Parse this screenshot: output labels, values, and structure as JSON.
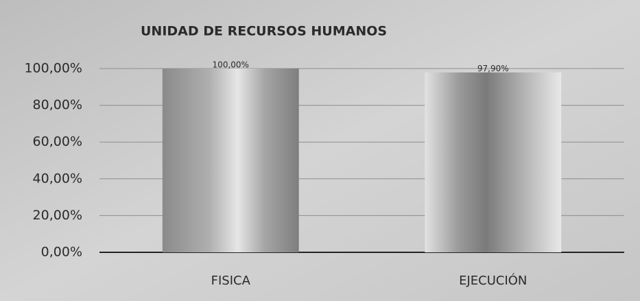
{
  "chart_data": {
    "type": "bar",
    "title": "UNIDAD DE RECURSOS HUMANOS",
    "categories": [
      "FISICA",
      "EJECUCIÓN"
    ],
    "values": [
      100,
      97.9
    ],
    "value_labels": [
      "100,00%",
      "97,90%"
    ],
    "ylim": [
      0,
      100
    ],
    "yticks": [
      {
        "value": 0,
        "label": "0,00%"
      },
      {
        "value": 20,
        "label": "20,00%"
      },
      {
        "value": 40,
        "label": "40,00%"
      },
      {
        "value": 60,
        "label": "60,00%"
      },
      {
        "value": 80,
        "label": "80,00%"
      },
      {
        "value": 100,
        "label": "100,00%"
      }
    ],
    "grid": true
  }
}
